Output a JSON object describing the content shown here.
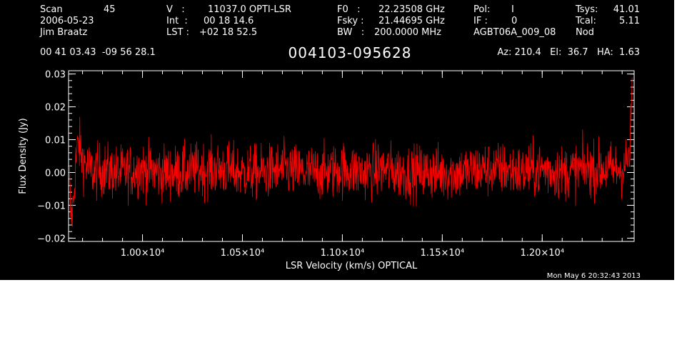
{
  "header": {
    "scan_label": "Scan",
    "scan_value": "45",
    "date": "2006-05-23",
    "observer": "Jim Braatz",
    "v_label": "V   :",
    "v_value": "11037.0 OPTI-LSR",
    "int_label": "Int  :",
    "int_value": "00 18 14.6",
    "lst_label": "LST :",
    "lst_value": "+02 18 52.5",
    "f0_label": "F0   :",
    "f0_value": "22.23508 GHz",
    "fsky_label": "Fsky :",
    "fsky_value": "21.44695 GHz",
    "bw_label": "BW   :",
    "bw_value": "200.0000 MHz",
    "pol_label": "Pol:",
    "pol_value": "I",
    "if_label": "IF :",
    "if_value": "0",
    "project": "AGBT06A_009_08",
    "tsys_label": "Tsys:",
    "tsys_value": "41.01",
    "tcal_label": "Tcal:",
    "tcal_value": "5.11",
    "mode": "Nod",
    "coords": "00 41 03.43  -09 56 28.1",
    "source": "004103-095628",
    "az_el_ha": "Az: 210.4   El:  36.7   HA:  1.63",
    "timestamp": "Mon May  6 20:32:43 2013"
  },
  "colors": {
    "background": "#000000",
    "axes": "#ffffff",
    "trace": "#ff0000"
  },
  "chart_data": {
    "type": "line",
    "title": "004103-095628",
    "xlabel": "LSR Velocity (km/s) OPTICAL",
    "ylabel": "Flux Density (Jy)",
    "xlim": [
      9630,
      12460
    ],
    "ylim": [
      -0.021,
      0.031
    ],
    "x_ticks": [
      10000,
      10500,
      11000,
      11500,
      12000
    ],
    "x_tick_labels": [
      "1.00×10⁴",
      "1.05×10⁴",
      "1.10×10⁴",
      "1.15×10⁴",
      "1.20×10⁴"
    ],
    "y_ticks": [
      -0.02,
      -0.01,
      0.0,
      0.01,
      0.02,
      0.03
    ],
    "y_tick_labels": [
      "−0.02",
      "−0.01",
      "0.00",
      "0.01",
      "0.02",
      "0.03"
    ],
    "grid": false,
    "series": [
      {
        "x": [
          9635,
          9640,
          9645,
          9655,
          9665,
          9680,
          9700,
          9730,
          9760,
          9800,
          9850,
          9900,
          10000,
          10100,
          10200,
          10300,
          10400,
          10500,
          10600,
          10700,
          10800,
          10900,
          11000,
          11100,
          11200,
          11300,
          11400,
          11500,
          11600,
          11700,
          11800,
          11900,
          12000,
          12100,
          12200,
          12300,
          12400,
          12430,
          12440,
          12450
        ],
        "y": [
          -0.002,
          -0.012,
          -0.014,
          -0.009,
          0.003,
          0.009,
          0.004,
          0.001,
          0.0,
          0.001,
          0.0,
          0.0,
          0.001,
          0.0,
          0.0,
          0.001,
          0.001,
          0.0,
          0.0,
          0.001,
          0.0,
          0.0,
          0.001,
          0.0,
          0.001,
          0.0,
          0.0,
          0.0,
          0.0,
          0.001,
          0.001,
          0.0,
          0.001,
          0.0,
          0.001,
          0.001,
          0.001,
          0.004,
          0.006,
          0.029
        ]
      }
    ]
  }
}
